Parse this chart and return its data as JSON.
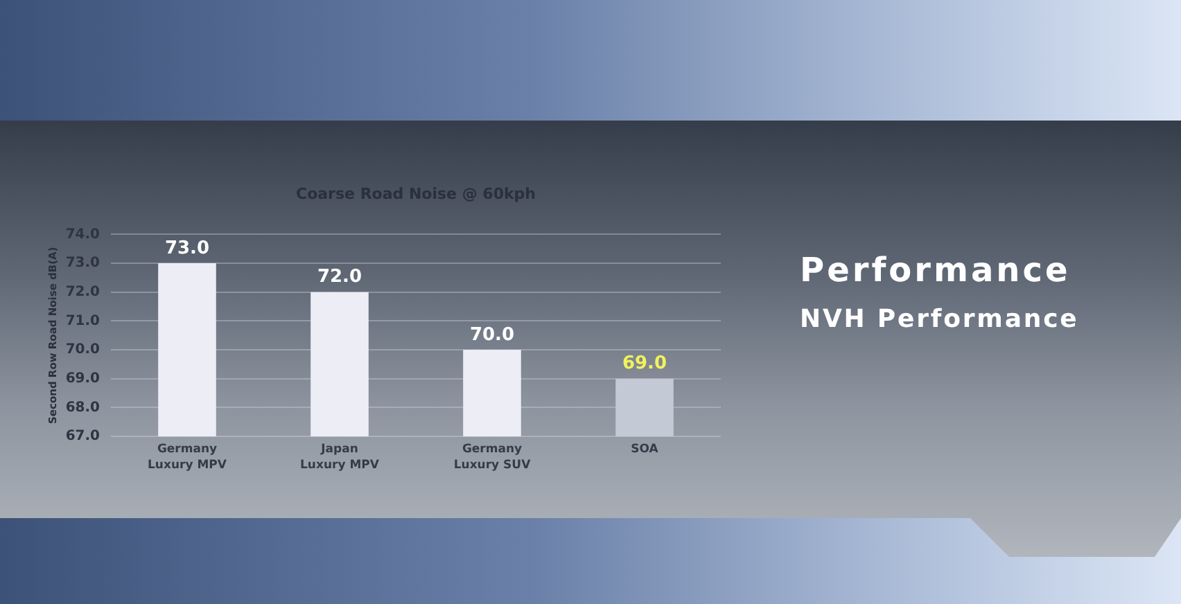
{
  "chart_data": {
    "type": "bar",
    "title": "Coarse Road Noise @ 60kph",
    "ylabel": "Second Row Road Noise dB(A)",
    "annotations": [
      "Performance",
      "NVH Performance"
    ],
    "categories": [
      "Germany Luxury MPV",
      "Japan Luxury MPV",
      "Germany Luxury SUV",
      "SOA"
    ],
    "values": [
      73,
      72,
      70,
      69
    ],
    "value_labels": [
      "73.0",
      "72.0",
      "70.0",
      "69.0"
    ],
    "colors": [
      "#ededf5",
      "#ededf5",
      "#ededf5",
      "#c4cad5"
    ],
    "ylim": [
      67,
      74
    ],
    "yticks": [
      {
        "value": 67,
        "label": "67.0"
      },
      {
        "value": 68,
        "label": "68.0"
      },
      {
        "value": 69,
        "label": "69.0"
      },
      {
        "value": 70,
        "label": "70.0"
      },
      {
        "value": 71,
        "label": "71.0"
      },
      {
        "value": 72,
        "label": "72.0"
      },
      {
        "value": 73,
        "label": "73.0"
      },
      {
        "value": 74,
        "label": "74.0"
      }
    ],
    "grid": "y"
  }
}
